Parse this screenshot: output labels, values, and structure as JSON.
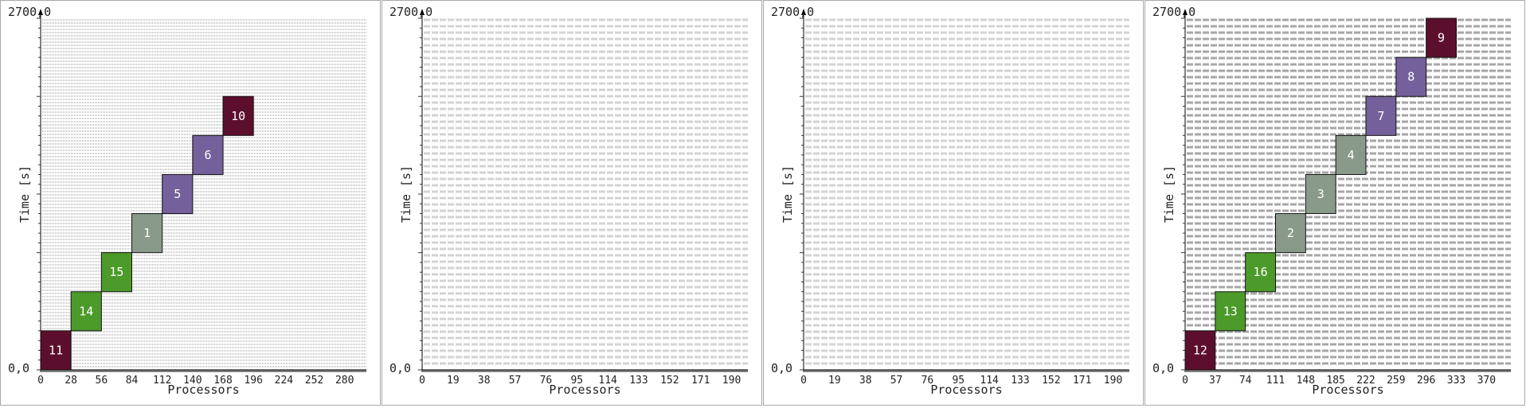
{
  "chart_data": [
    {
      "type": "gantt",
      "corner_top": "2700,0",
      "corner_bottom": "0,0",
      "ylabel": "Time [s]",
      "xlabel": "Processors",
      "ylim": [
        0,
        2700
      ],
      "xlim": [
        0,
        300
      ],
      "x_ticks": [
        "0",
        "28",
        "56",
        "84",
        "112",
        "140",
        "168",
        "196",
        "224",
        "252",
        "280"
      ],
      "grid_style": "dense-dotted",
      "tasks": [
        {
          "label": "11",
          "x0": 0,
          "x1": 28,
          "y0": 0,
          "y1": 300,
          "color": "#5c0f2c"
        },
        {
          "label": "14",
          "x0": 28,
          "x1": 56,
          "y0": 300,
          "y1": 600,
          "color": "#4c9a2a"
        },
        {
          "label": "15",
          "x0": 56,
          "x1": 84,
          "y0": 600,
          "y1": 900,
          "color": "#4c9a2a"
        },
        {
          "label": "1",
          "x0": 84,
          "x1": 112,
          "y0": 900,
          "y1": 1200,
          "color": "#8a9a8a"
        },
        {
          "label": "5",
          "x0": 112,
          "x1": 140,
          "y0": 1200,
          "y1": 1500,
          "color": "#74609a"
        },
        {
          "label": "6",
          "x0": 140,
          "x1": 168,
          "y0": 1500,
          "y1": 1800,
          "color": "#74609a"
        },
        {
          "label": "10",
          "x0": 168,
          "x1": 196,
          "y0": 1800,
          "y1": 2100,
          "color": "#5c0f2c"
        }
      ]
    },
    {
      "type": "gantt",
      "corner_top": "2700,0",
      "corner_bottom": "0,0",
      "ylabel": "Time [s]",
      "xlabel": "Processors",
      "ylim": [
        0,
        2700
      ],
      "xlim": [
        0,
        200
      ],
      "x_ticks": [
        "0",
        "19",
        "38",
        "57",
        "76",
        "95",
        "114",
        "133",
        "152",
        "171",
        "190"
      ],
      "grid_style": "dashed-light",
      "tasks": []
    },
    {
      "type": "gantt",
      "corner_top": "2700,0",
      "corner_bottom": "0,0",
      "ylabel": "Time [s]",
      "xlabel": "Processors",
      "ylim": [
        0,
        2700
      ],
      "xlim": [
        0,
        200
      ],
      "x_ticks": [
        "0",
        "19",
        "38",
        "57",
        "76",
        "95",
        "114",
        "133",
        "152",
        "171",
        "190"
      ],
      "grid_style": "dashed-light",
      "tasks": []
    },
    {
      "type": "gantt",
      "corner_top": "2700,0",
      "corner_bottom": "0,0",
      "ylabel": "Time [s]",
      "xlabel": "Processors",
      "ylim": [
        0,
        2700
      ],
      "xlim": [
        0,
        400
      ],
      "x_ticks": [
        "0",
        "37",
        "74",
        "111",
        "148",
        "185",
        "222",
        "259",
        "296",
        "333",
        "370"
      ],
      "grid_style": "dashed-dark",
      "tasks": [
        {
          "label": "12",
          "x0": 0,
          "x1": 37,
          "y0": 0,
          "y1": 300,
          "color": "#5c0f2c"
        },
        {
          "label": "13",
          "x0": 37,
          "x1": 74,
          "y0": 300,
          "y1": 600,
          "color": "#4c9a2a"
        },
        {
          "label": "16",
          "x0": 74,
          "x1": 111,
          "y0": 600,
          "y1": 900,
          "color": "#4c9a2a"
        },
        {
          "label": "2",
          "x0": 111,
          "x1": 148,
          "y0": 900,
          "y1": 1200,
          "color": "#8a9a8a"
        },
        {
          "label": "3",
          "x0": 148,
          "x1": 185,
          "y0": 1200,
          "y1": 1500,
          "color": "#8a9a8a"
        },
        {
          "label": "4",
          "x0": 185,
          "x1": 222,
          "y0": 1500,
          "y1": 1800,
          "color": "#8a9a8a"
        },
        {
          "label": "7",
          "x0": 222,
          "x1": 259,
          "y0": 1800,
          "y1": 2100,
          "color": "#74609a"
        },
        {
          "label": "8",
          "x0": 259,
          "x1": 296,
          "y0": 2100,
          "y1": 2400,
          "color": "#74609a"
        },
        {
          "label": "9",
          "x0": 296,
          "x1": 333,
          "y0": 2400,
          "y1": 2700,
          "color": "#5c0f2c"
        }
      ]
    }
  ]
}
